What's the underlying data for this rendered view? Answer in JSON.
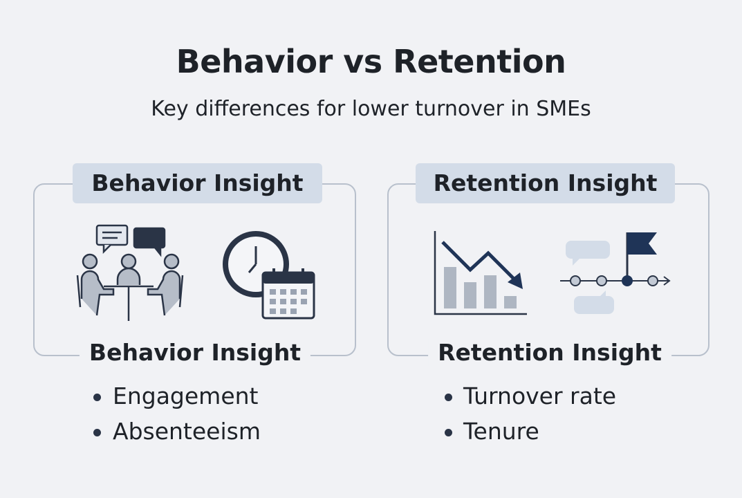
{
  "header": {
    "title": "Behavior vs Retention",
    "subtitle": "Key differences for lower turnover in SMEs"
  },
  "panels": [
    {
      "tag": "Behavior Insight",
      "heading": "Behavior Insight",
      "items": [
        "Engagement",
        "Absenteeism"
      ]
    },
    {
      "tag": "Retention Insight",
      "heading": "Retention Insight",
      "items": [
        "Turnover rate",
        "Tenure"
      ]
    }
  ]
}
